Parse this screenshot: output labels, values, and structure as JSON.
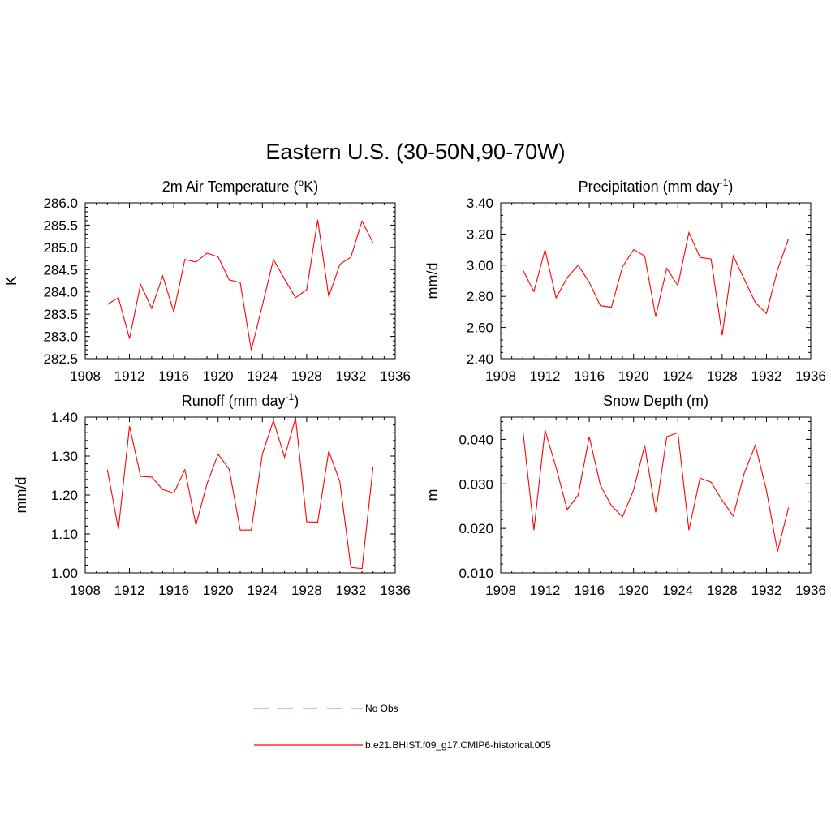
{
  "figure": {
    "title": "Eastern U.S. (30-50N,90-70W)"
  },
  "legend": {
    "location": "bottom-center",
    "entries": [
      {
        "label": "No Obs",
        "color": "#9999ff",
        "style": "dashed"
      },
      {
        "label": "b.e21.BHIST.f09_g17.CMIP6-historical.005",
        "color": "#ff0000",
        "style": "solid"
      }
    ]
  },
  "chart_data": [
    {
      "type": "line",
      "title": "2m Air Temperature (",
      "title_sup": "o",
      "title_end": "K)",
      "xlabel": "",
      "ylabel": "K",
      "xlim": [
        1908,
        1936
      ],
      "ylim": [
        282.5,
        286.0
      ],
      "xticks": [
        1908,
        1912,
        1916,
        1920,
        1924,
        1928,
        1932,
        1936
      ],
      "xtick_labels": [
        "1908",
        "1912",
        "1916",
        "1920",
        "1924",
        "1928",
        "1932",
        "1936"
      ],
      "yticks": [
        282.5,
        283.0,
        283.5,
        284.0,
        284.5,
        285.0,
        285.5,
        286.0
      ],
      "ytick_labels": [
        "282.5",
        "283.0",
        "283.5",
        "284.0",
        "284.5",
        "285.0",
        "285.5",
        "286.0"
      ],
      "x": [
        1910,
        1911,
        1912,
        1913,
        1914,
        1915,
        1916,
        1917,
        1918,
        1919,
        1920,
        1921,
        1922,
        1923,
        1924,
        1925,
        1926,
        1927,
        1928,
        1929,
        1930,
        1931,
        1932,
        1933,
        1934
      ],
      "series": [
        {
          "color": "#ff0000",
          "values": [
            283.72,
            283.87,
            282.95,
            284.17,
            283.63,
            284.36,
            283.55,
            284.73,
            284.67,
            284.87,
            284.79,
            284.27,
            284.21,
            282.69,
            283.7,
            284.73,
            284.29,
            283.87,
            284.05,
            285.62,
            283.89,
            284.62,
            284.78,
            285.59,
            285.1
          ]
        }
      ]
    },
    {
      "type": "line",
      "title": "Precipitation (mm day",
      "title_sup": "-1",
      "title_end": ")",
      "xlabel": "",
      "ylabel": "mm/d",
      "xlim": [
        1908,
        1936
      ],
      "ylim": [
        2.4,
        3.4
      ],
      "xticks": [
        1908,
        1912,
        1916,
        1920,
        1924,
        1928,
        1932,
        1936
      ],
      "xtick_labels": [
        "1908",
        "1912",
        "1916",
        "1920",
        "1924",
        "1928",
        "1932",
        "1936"
      ],
      "yticks": [
        2.4,
        2.6,
        2.8,
        3.0,
        3.2,
        3.4
      ],
      "ytick_labels": [
        "2.40",
        "2.60",
        "2.80",
        "3.00",
        "3.20",
        "3.40"
      ],
      "x": [
        1910,
        1911,
        1912,
        1913,
        1914,
        1915,
        1916,
        1917,
        1918,
        1919,
        1920,
        1921,
        1922,
        1923,
        1924,
        1925,
        1926,
        1927,
        1928,
        1929,
        1930,
        1931,
        1932,
        1933,
        1934
      ],
      "series": [
        {
          "color": "#ff0000",
          "values": [
            2.97,
            2.83,
            3.1,
            2.79,
            2.92,
            3.0,
            2.89,
            2.74,
            2.73,
            2.99,
            3.1,
            3.06,
            2.67,
            2.98,
            2.87,
            3.21,
            3.05,
            3.04,
            2.55,
            3.06,
            2.91,
            2.76,
            2.69,
            2.97,
            3.17
          ]
        }
      ]
    },
    {
      "type": "line",
      "title": "Runoff (mm day",
      "title_sup": "-1",
      "title_end": ")",
      "xlabel": "",
      "ylabel": "mm/d",
      "xlim": [
        1908,
        1936
      ],
      "ylim": [
        1.0,
        1.4
      ],
      "xticks": [
        1908,
        1912,
        1916,
        1920,
        1924,
        1928,
        1932,
        1936
      ],
      "xtick_labels": [
        "1908",
        "1912",
        "1916",
        "1920",
        "1924",
        "1928",
        "1932",
        "1936"
      ],
      "yticks": [
        1.0,
        1.1,
        1.2,
        1.3,
        1.4
      ],
      "ytick_labels": [
        "1.00",
        "1.10",
        "1.20",
        "1.30",
        "1.40"
      ],
      "x": [
        1910,
        1911,
        1912,
        1913,
        1914,
        1915,
        1916,
        1917,
        1918,
        1919,
        1920,
        1921,
        1922,
        1923,
        1924,
        1925,
        1926,
        1927,
        1928,
        1929,
        1930,
        1931,
        1932,
        1933,
        1934
      ],
      "series": [
        {
          "color": "#ff0000",
          "values": [
            1.265,
            1.112,
            1.377,
            1.248,
            1.246,
            1.214,
            1.205,
            1.265,
            1.123,
            1.229,
            1.305,
            1.266,
            1.11,
            1.11,
            1.305,
            1.391,
            1.297,
            1.398,
            1.131,
            1.13,
            1.313,
            1.234,
            1.014,
            1.011,
            1.272
          ]
        }
      ]
    },
    {
      "type": "line",
      "title": "Snow Depth (m)",
      "title_sup": "",
      "title_end": "",
      "xlabel": "",
      "ylabel": "m",
      "xlim": [
        1908,
        1936
      ],
      "ylim": [
        0.01,
        0.045
      ],
      "xticks": [
        1908,
        1912,
        1916,
        1920,
        1924,
        1928,
        1932,
        1936
      ],
      "xtick_labels": [
        "1908",
        "1912",
        "1916",
        "1920",
        "1924",
        "1928",
        "1932",
        "1936"
      ],
      "yticks": [
        0.01,
        0.02,
        0.03,
        0.04
      ],
      "ytick_labels": [
        "0.010",
        "0.020",
        "0.030",
        "0.040"
      ],
      "x": [
        1910,
        1911,
        1912,
        1913,
        1914,
        1915,
        1916,
        1917,
        1918,
        1919,
        1920,
        1921,
        1922,
        1923,
        1924,
        1925,
        1926,
        1927,
        1928,
        1929,
        1930,
        1931,
        1932,
        1933,
        1934
      ],
      "series": [
        {
          "color": "#ff0000",
          "values": [
            0.0421,
            0.0196,
            0.0421,
            0.0337,
            0.0242,
            0.0275,
            0.0406,
            0.0297,
            0.0251,
            0.0226,
            0.0286,
            0.0387,
            0.0236,
            0.0406,
            0.0415,
            0.0196,
            0.0313,
            0.0304,
            0.0263,
            0.0228,
            0.0324,
            0.0387,
            0.0286,
            0.0148,
            0.0247
          ]
        }
      ]
    }
  ]
}
